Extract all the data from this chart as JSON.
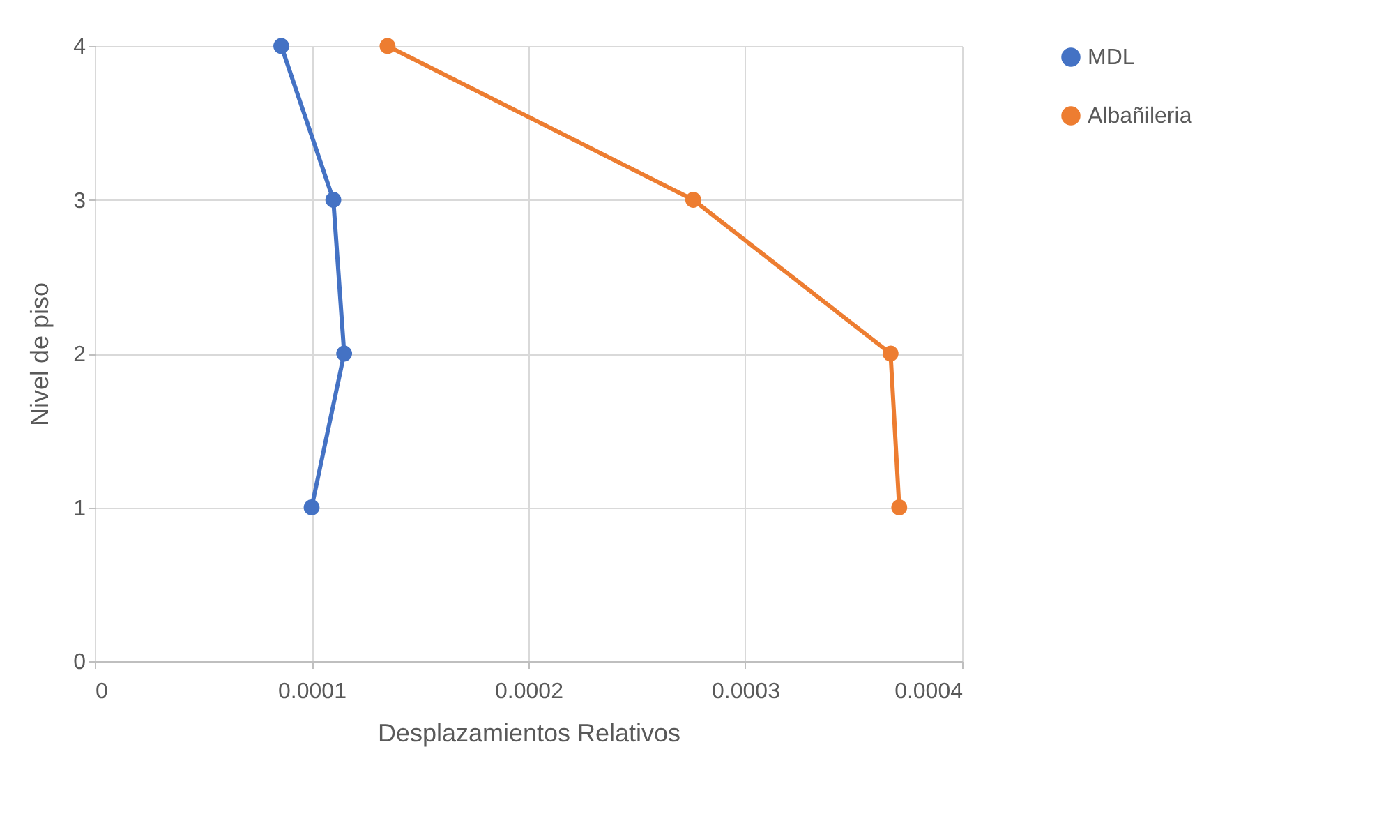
{
  "chart_data": {
    "type": "line",
    "xlabel": "Desplazamientos Relativos",
    "ylabel": "Nivel de piso",
    "xlim": [
      0,
      0.0004
    ],
    "xticks": [
      0,
      0.0001,
      0.0002,
      0.0003,
      0.0004
    ],
    "ylim": [
      0,
      4
    ],
    "yticks": [
      0,
      1,
      2,
      3,
      4
    ],
    "grid": true,
    "legend": "right",
    "marker": "circle",
    "line_style": "solid",
    "series": [
      {
        "name": "MDL",
        "color": "#4472c4",
        "x": [
          8.6e-05,
          0.00011,
          0.000115,
          0.0001
        ],
        "values": [
          4,
          3,
          2,
          1
        ]
      },
      {
        "name": "Albañileria",
        "color": "#ed7d31",
        "x": [
          0.000135,
          0.000276,
          0.000367,
          0.000371
        ],
        "values": [
          4,
          3,
          2,
          1
        ]
      }
    ]
  }
}
